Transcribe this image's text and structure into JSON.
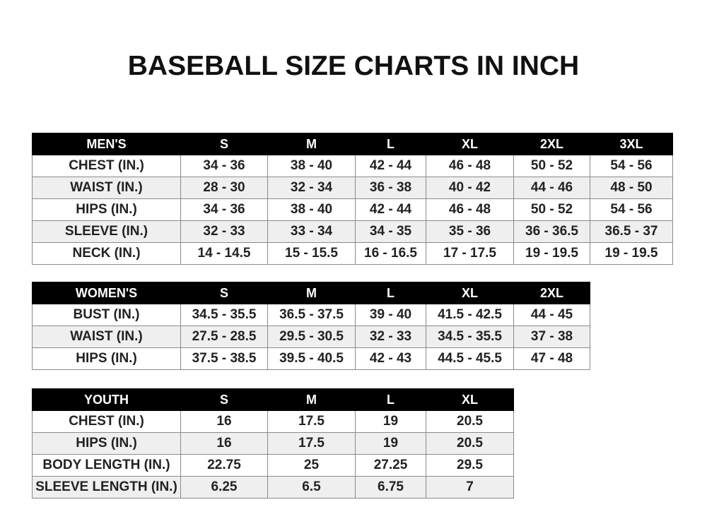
{
  "title": "BASEBALL SIZE CHARTS IN INCH",
  "tables": [
    {
      "header": [
        "MEN'S",
        "S",
        "M",
        "L",
        "XL",
        "2XL",
        "3XL"
      ],
      "rows": [
        [
          "CHEST (IN.)",
          "34 - 36",
          "38 - 40",
          "42 - 44",
          "46 - 48",
          "50 - 52",
          "54 - 56"
        ],
        [
          "WAIST (IN.)",
          "28 - 30",
          "32 - 34",
          "36 - 38",
          "40 - 42",
          "44 - 46",
          "48 - 50"
        ],
        [
          "HIPS (IN.)",
          "34 - 36",
          "38 - 40",
          "42 - 44",
          "46 - 48",
          "50 - 52",
          "54 - 56"
        ],
        [
          "SLEEVE (IN.)",
          "32 - 33",
          "33 - 34",
          "34 - 35",
          "35 - 36",
          "36 - 36.5",
          "36.5 - 37"
        ],
        [
          "NECK (IN.)",
          "14 - 14.5",
          "15 - 15.5",
          "16 - 16.5",
          "17 - 17.5",
          "19 - 19.5",
          "19 - 19.5"
        ]
      ]
    },
    {
      "header": [
        "WOMEN'S",
        "S",
        "M",
        "L",
        "XL",
        "2XL"
      ],
      "rows": [
        [
          "BUST (IN.)",
          "34.5 - 35.5",
          "36.5 - 37.5",
          "39 - 40",
          "41.5 - 42.5",
          "44 - 45"
        ],
        [
          "WAIST (IN.)",
          "27.5 - 28.5",
          "29.5 - 30.5",
          "32 - 33",
          "34.5 - 35.5",
          "37 - 38"
        ],
        [
          "HIPS (IN.)",
          "37.5 - 38.5",
          "39.5 - 40.5",
          "42 - 43",
          "44.5 - 45.5",
          "47 - 48"
        ]
      ]
    },
    {
      "header": [
        "YOUTH",
        "S",
        "M",
        "L",
        "XL"
      ],
      "rows": [
        [
          "CHEST (IN.)",
          "16",
          "17.5",
          "19",
          "20.5"
        ],
        [
          "HIPS (IN.)",
          "16",
          "17.5",
          "19",
          "20.5"
        ],
        [
          "BODY LENGTH (IN.)",
          "22.75",
          "25",
          "27.25",
          "29.5"
        ],
        [
          "SLEEVE LENGTH (IN.)",
          "6.25",
          "6.5",
          "6.75",
          "7"
        ]
      ]
    }
  ]
}
